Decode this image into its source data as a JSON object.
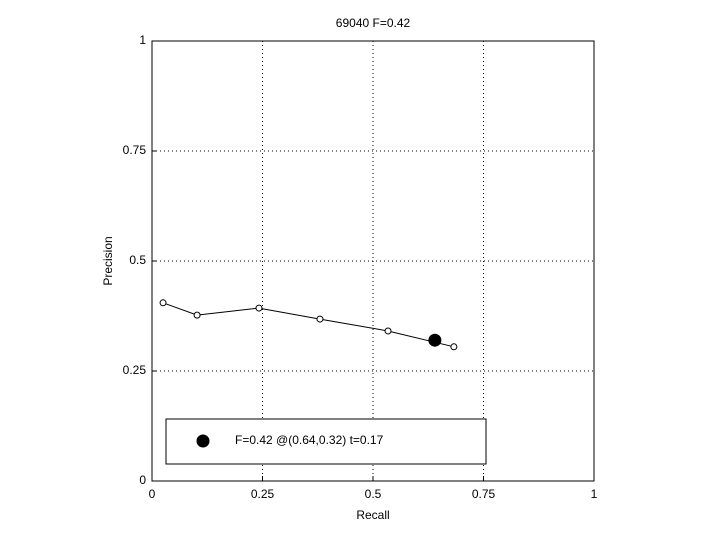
{
  "chart_data": {
    "type": "line",
    "title": "69040 F=0.42",
    "xlabel": "Recall",
    "ylabel": "Precision",
    "xlim": [
      0,
      1
    ],
    "ylim": [
      0,
      1
    ],
    "xticks": [
      0,
      0.25,
      0.5,
      0.75,
      1
    ],
    "yticks": [
      0,
      0.25,
      0.5,
      0.75,
      1
    ],
    "grid": true,
    "legend_position": "lower left",
    "series": [
      {
        "color": "#000000",
        "marker": "open-circle",
        "x": [
          0.025,
          0.102,
          0.242,
          0.38,
          0.534,
          0.683
        ],
        "values": [
          0.405,
          0.377,
          0.393,
          0.368,
          0.341,
          0.305
        ]
      },
      {
        "name": "F=0.42 @(0.64,0.32) t=0.17",
        "color": "#000000",
        "marker": "filled-circle",
        "x": [
          0.64
        ],
        "values": [
          0.32
        ]
      }
    ]
  }
}
